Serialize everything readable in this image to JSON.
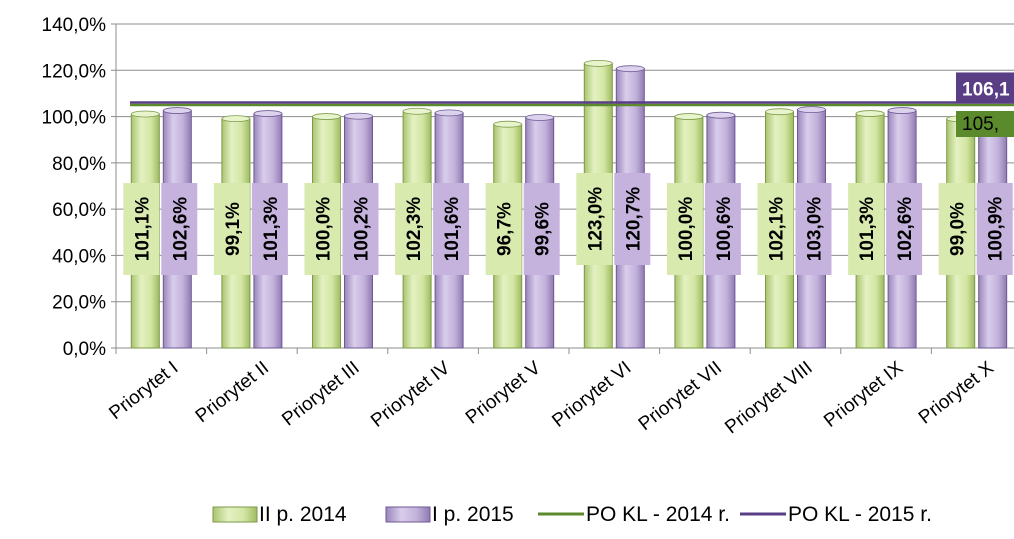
{
  "chart_data": {
    "type": "bar",
    "categories": [
      "Priorytet I",
      "Priorytet II",
      "Priorytet III",
      "Priorytet IV",
      "Priorytet V",
      "Priorytet VI",
      "Priorytet VII",
      "Priorytet VIII",
      "Priorytet IX",
      "Priorytet X"
    ],
    "series": [
      {
        "name": "II p. 2014",
        "values": [
          101.1,
          99.1,
          100.0,
          102.3,
          96.7,
          123.0,
          100.0,
          102.1,
          101.3,
          99.0
        ],
        "labels": [
          "101,1%",
          "99,1%",
          "100,0%",
          "102,3%",
          "96,7%",
          "123,0%",
          "100,0%",
          "102,1%",
          "101,3%",
          "99,0%"
        ],
        "color": "#d6e9a8"
      },
      {
        "name": "I p. 2015",
        "values": [
          102.6,
          101.3,
          100.2,
          101.6,
          99.6,
          120.7,
          100.6,
          103.0,
          102.6,
          100.9
        ],
        "labels": [
          "102,6%",
          "101,3%",
          "100,2%",
          "101,6%",
          "99,6%",
          "120,7%",
          "100,6%",
          "103,0%",
          "102,6%",
          "100,9%"
        ],
        "color": "#c3b3d9"
      }
    ],
    "lines": [
      {
        "name": "PO KL - 2014 r.",
        "value": 105.0,
        "label": "105,",
        "color": "#5b8a2c"
      },
      {
        "name": "PO KL - 2015 r.",
        "value": 106.1,
        "label": "106,1",
        "color": "#5a3e85"
      }
    ],
    "ylim": [
      0,
      140
    ],
    "yticks": [
      "0,0%",
      "20,0%",
      "40,0%",
      "60,0%",
      "80,0%",
      "100,0%",
      "120,0%",
      "140,0%"
    ],
    "grid": true,
    "legend": "bottom",
    "title": "",
    "xlabel": "",
    "ylabel": ""
  }
}
